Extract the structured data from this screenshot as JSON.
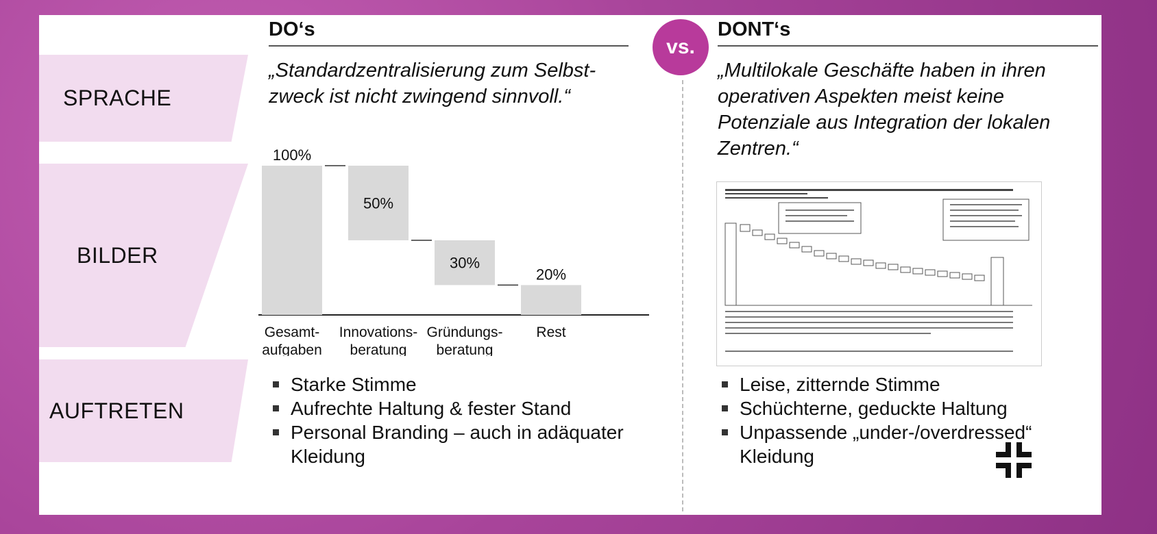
{
  "rows": {
    "sprache": "SPRACHE",
    "bilder": "BILDER",
    "auftreten": "AUFTRETEN"
  },
  "columns": {
    "do_title": "DO‘s",
    "dont_title": "DONT‘s",
    "vs": "vs."
  },
  "quotes": {
    "do": "„Standardzentralisierung zum Selbst-zweck ist nicht zwingend sinnvoll.“",
    "dont": "„Multilokale Geschäfte haben in ihren operativen Aspekten meist keine Potenziale aus Integration der lokalen Zentren.“"
  },
  "chart_data": {
    "type": "bar",
    "categories": [
      "Gesamt-\naufgaben",
      "Innovations-\nberatung",
      "Gründungs-\nberatung",
      "Rest"
    ],
    "values": [
      100,
      50,
      30,
      20
    ],
    "value_labels": [
      "100%",
      "50%",
      "30%",
      "20%"
    ],
    "waterfall": true,
    "title": "",
    "xlabel": "",
    "ylabel": "",
    "ylim": [
      0,
      100
    ],
    "bar_color": "#d9d9d9"
  },
  "bullets": {
    "do": [
      "Starke Stimme",
      "Aufrechte Haltung & fester Stand",
      "Personal Branding – auch in adäquater Kleidung"
    ],
    "dont": [
      "Leise, zitternde Stimme",
      "Schüchterne, geduckte Haltung",
      "Unpassende „under-/overdressed“ Kleidung"
    ]
  },
  "colors": {
    "accent": "#b83a9b",
    "band": "#f2dcef",
    "background": "#a8449a"
  },
  "icons": {
    "corner": "compress-corners-icon"
  }
}
